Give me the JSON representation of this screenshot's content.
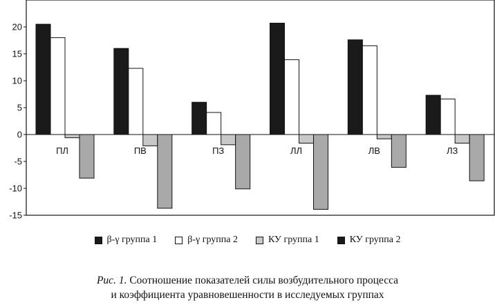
{
  "chart_data": {
    "type": "bar",
    "categories": [
      "ПЛ",
      "ПВ",
      "ПЗ",
      "ЛЛ",
      "ЛВ",
      "ЛЗ"
    ],
    "series": [
      {
        "name": "β-γ группа 1",
        "values": [
          20.5,
          16,
          6,
          20.7,
          17.6,
          7.3
        ],
        "color": "#1a1a1a"
      },
      {
        "name": "β-γ группа 2",
        "values": [
          18,
          12.3,
          4.1,
          13.9,
          16.5,
          6.6
        ],
        "color": "#ffffff"
      },
      {
        "name": "КУ группа 1",
        "values": [
          -0.6,
          -2.1,
          -1.9,
          -1.6,
          -0.8,
          -1.6
        ],
        "color": "#c8c8c8"
      },
      {
        "name": "КУ группа 2",
        "values": [
          -8.1,
          -13.7,
          -10.1,
          -13.9,
          -6.1,
          -8.6
        ],
        "color": "#a9a9a9"
      }
    ],
    "ylim": [
      -15,
      25
    ],
    "yticks": [
      -15,
      -10,
      -5,
      0,
      5,
      10,
      15,
      20
    ],
    "grid": false,
    "legend_position": "bottom"
  },
  "caption": {
    "prefix": "Рис. 1.",
    "line1": "Соотношение показателей силы возбудительного процесса",
    "line2": "и коэффициента уравновешенности в исследуемых группах"
  }
}
